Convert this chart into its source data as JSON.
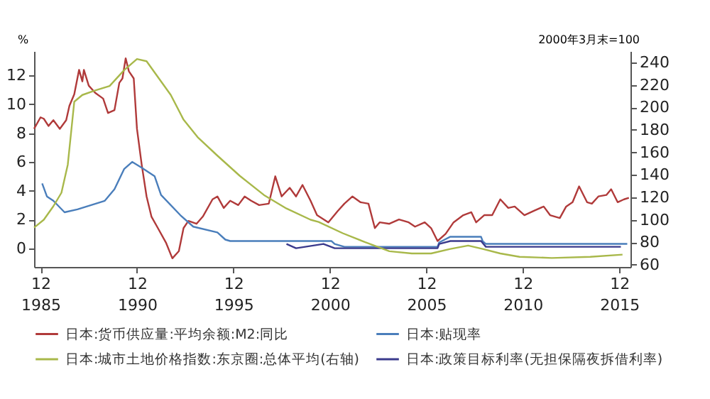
{
  "chart_data": {
    "type": "line",
    "ylabel": "%",
    "y2label": "2000年3月末=100",
    "legend": "bottom",
    "xlim": [
      "1985-08",
      "2016-07"
    ],
    "ylim": [
      -1.3,
      13.7
    ],
    "y2lim": [
      58,
      250
    ],
    "yticks": [
      0,
      2,
      4,
      6,
      8,
      10,
      12
    ],
    "y2ticks": [
      60,
      80,
      100,
      120,
      140,
      160,
      180,
      200,
      220,
      240
    ],
    "xticks": [
      {
        "value": "1985-12",
        "label": "12\n1985"
      },
      {
        "value": "1990-12",
        "label": "12\n1990"
      },
      {
        "value": "1995-12",
        "label": "12\n1995"
      },
      {
        "value": "2000-12",
        "label": "12\n2000"
      },
      {
        "value": "2005-12",
        "label": "12\n2005"
      },
      {
        "value": "2010-12",
        "label": "12\n2010"
      },
      {
        "value": "2015-12",
        "label": "12\n2015"
      }
    ],
    "series": [
      {
        "name": "日本:货币供应量:平均余额:M2:同比",
        "color": "#b03a3a",
        "x": [
          "1985-08",
          "1985-12",
          "1986-02",
          "1986-05",
          "1986-08",
          "1986-12",
          "1987-04",
          "1987-06",
          "1987-09",
          "1987-12",
          "1988-02",
          "1988-03",
          "1988-06",
          "1988-10",
          "1989-03",
          "1989-06",
          "1989-10",
          "1990-01",
          "1990-03",
          "1990-05",
          "1990-07",
          "1990-10",
          "1990-12",
          "1991-03",
          "1991-06",
          "1991-09",
          "1992-01",
          "1992-06",
          "1992-10",
          "1993-02",
          "1993-05",
          "1993-08",
          "1994-01",
          "1994-05",
          "1994-11",
          "1995-02",
          "1995-06",
          "1995-10",
          "1996-03",
          "1996-07",
          "1996-11",
          "1997-04",
          "1997-10",
          "1998-02",
          "1998-06",
          "1998-11",
          "1999-03",
          "1999-07",
          "1999-12",
          "2000-04",
          "2000-11",
          "2001-05",
          "2001-09",
          "2002-02",
          "2002-07",
          "2002-12",
          "2003-04",
          "2003-07",
          "2004-01",
          "2004-07",
          "2005-01",
          "2005-05",
          "2005-11",
          "2006-03",
          "2006-07",
          "2006-12",
          "2007-05",
          "2007-11",
          "2008-04",
          "2008-07",
          "2008-12",
          "2009-05",
          "2009-10",
          "2010-03",
          "2010-07",
          "2011-01",
          "2011-07",
          "2012-01",
          "2012-05",
          "2012-11",
          "2013-03",
          "2013-07",
          "2013-11",
          "2014-04",
          "2014-07",
          "2014-11",
          "2015-04",
          "2015-07",
          "2015-11",
          "2016-03",
          "2016-06"
        ],
        "values": [
          8.3,
          9.1,
          9.0,
          8.5,
          8.9,
          8.3,
          8.9,
          9.9,
          10.7,
          12.4,
          11.6,
          12.4,
          11.3,
          10.8,
          10.4,
          9.4,
          9.6,
          11.5,
          11.8,
          13.2,
          12.3,
          11.8,
          8.3,
          5.8,
          3.6,
          2.2,
          1.4,
          0.4,
          -0.7,
          -0.2,
          1.4,
          1.9,
          1.7,
          2.2,
          3.4,
          3.6,
          2.8,
          3.3,
          3.0,
          3.6,
          3.3,
          3.0,
          3.1,
          5.0,
          3.6,
          4.2,
          3.6,
          4.4,
          3.3,
          2.3,
          1.8,
          2.6,
          3.1,
          3.6,
          3.2,
          3.1,
          1.4,
          1.8,
          1.7,
          2.0,
          1.8,
          1.5,
          1.8,
          1.4,
          0.5,
          1.0,
          1.8,
          2.3,
          2.5,
          1.8,
          2.3,
          2.3,
          3.4,
          2.8,
          2.9,
          2.3,
          2.6,
          2.9,
          2.3,
          2.1,
          2.9,
          3.2,
          4.3,
          3.2,
          3.1,
          3.6,
          3.7,
          4.1,
          3.2,
          3.4,
          3.5
        ]
      },
      {
        "name": "日本:贴现率",
        "color": "#4a7ebb",
        "x": [
          "1986-01",
          "1986-04",
          "1986-08",
          "1987-03",
          "1987-11",
          "1989-04",
          "1989-10",
          "1990-04",
          "1990-09",
          "1991-03",
          "1991-11",
          "1992-03",
          "1993-03",
          "1993-11",
          "1995-02",
          "1995-07",
          "1995-10",
          "2001-01",
          "2001-03",
          "2001-09",
          "2006-07",
          "2006-08",
          "2007-03",
          "2008-10",
          "2008-11",
          "2009-01",
          "2016-05"
        ],
        "values": [
          4.5,
          3.6,
          3.3,
          2.5,
          2.7,
          3.3,
          4.1,
          5.5,
          6.0,
          5.6,
          5.0,
          3.7,
          2.3,
          1.5,
          1.1,
          0.6,
          0.5,
          0.5,
          0.3,
          0.1,
          0.1,
          0.4,
          0.8,
          0.8,
          0.5,
          0.3,
          0.3
        ]
      },
      {
        "name": "日本:城市土地价格指数:东京圈:总体平均(右轴)",
        "color": "#a8b84a",
        "axis": "y2",
        "x": [
          "1985-08",
          "1986-02",
          "1986-08",
          "1987-01",
          "1987-05",
          "1987-09",
          "1988-02",
          "1988-10",
          "1989-07",
          "1990-04",
          "1990-12",
          "1991-06",
          "1991-12",
          "1992-09",
          "1993-05",
          "1994-02",
          "1995-02",
          "1996-04",
          "1997-07",
          "1998-09",
          "1999-12",
          "2000-05",
          "2001-08",
          "2002-10",
          "2004-01",
          "2005-03",
          "2006-03",
          "2007-03",
          "2008-02",
          "2008-11",
          "2009-10",
          "2010-10",
          "2012-06",
          "2014-06",
          "2016-02"
        ],
        "values": [
          93,
          100,
          112,
          124,
          149,
          205,
          211,
          215,
          219,
          233,
          243,
          241,
          229,
          211,
          189,
          173,
          157,
          139,
          122,
          110,
          100,
          98,
          88,
          80,
          72,
          70,
          70,
          74,
          77,
          74,
          70,
          67,
          66,
          67,
          69
        ]
      },
      {
        "name": "日本:政策目标利率(无担保隔夜拆借利率)",
        "color": "#3a3a8c",
        "x": [
          "1998-09",
          "1999-03",
          "2000-08",
          "2001-03",
          "2006-07",
          "2006-08",
          "2007-03",
          "2008-10",
          "2009-01",
          "2016-01"
        ],
        "values": [
          0.3,
          0,
          0.3,
          0,
          0,
          0.3,
          0.5,
          0.5,
          0.1,
          0.1
        ]
      }
    ]
  }
}
